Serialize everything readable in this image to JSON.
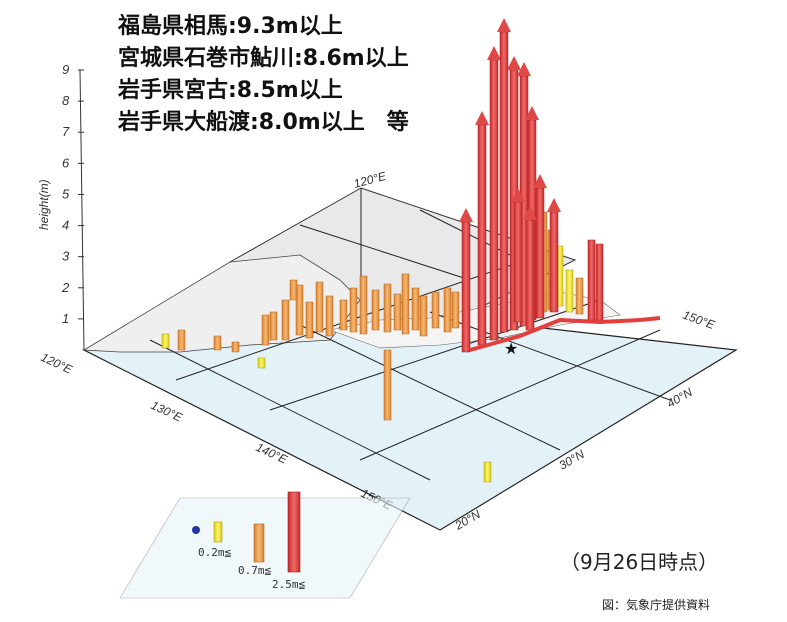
{
  "headline": {
    "lines": [
      "福島県相馬:9.3m以上",
      "宮城県石巻市鮎川:8.6m以上",
      "岩手県宮古:8.5m以上",
      "岩手県大船渡:8.0m以上　等"
    ]
  },
  "chart": {
    "type": "3d-bar-map",
    "ylabel": "height(m)",
    "yticks": [
      "1",
      "2",
      "3",
      "4",
      "5",
      "6",
      "7",
      "8",
      "9"
    ],
    "ylim": [
      0,
      9
    ],
    "longitude_labels": [
      "120°E",
      "130°E",
      "140°E",
      "150°E"
    ],
    "latitude_labels": [
      "20°N",
      "30°N",
      "40°N"
    ],
    "back_labels": [
      "120°E",
      "150°E"
    ],
    "colors": {
      "sea": "#e4f3f8",
      "land": "#eeeeee",
      "grid": "#222222",
      "small": "#f2e83a",
      "medium": "#f0a14e",
      "large": "#e53e3e",
      "epicenter": "#111111"
    }
  },
  "legend": {
    "items": [
      {
        "label": "0.2m≦",
        "color": "#f2e83a"
      },
      {
        "label": "0.7m≦",
        "color": "#f0a14e"
      },
      {
        "label": "2.5m≦",
        "color": "#e53e3e"
      }
    ]
  },
  "footer": {
    "timestamp": "（9月26日時点）",
    "credit": "図：気象庁提供資料"
  }
}
